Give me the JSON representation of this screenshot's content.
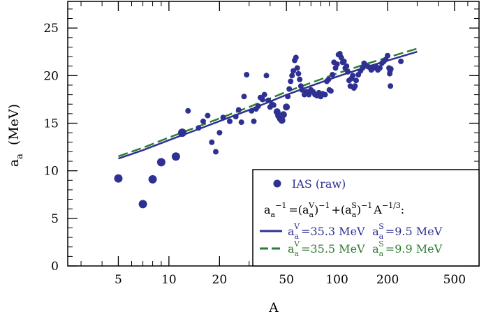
{
  "chart_data": {
    "type": "scatter",
    "xscale": "log",
    "xlim": [
      2.5,
      700
    ],
    "ylim": [
      0,
      27.8
    ],
    "xlabel": "A",
    "ylabel": {
      "main": "a",
      "sub": "a",
      "unit": "(MeV)"
    },
    "x_ticks": [
      5,
      10,
      20,
      50,
      100,
      200,
      500
    ],
    "y_ticks": [
      0,
      5,
      10,
      15,
      20,
      25
    ],
    "grid": false,
    "legend_position": "bottom-right",
    "legend": {
      "scatter_label": "IAS (raw)",
      "formula": {
        "a": "a",
        "sub_a": "a",
        "exp_m1": "−1",
        "exp_m13": "−1/3",
        "eq": "=",
        "paren_open": "(",
        "paren_close": ")",
        "plus": "+",
        "A": "A",
        "colon": ":",
        "sup_V": "V",
        "sup_S": "S"
      },
      "fits": [
        {
          "av_value": "35.3 MeV",
          "as_value": "9.5 MeV"
        },
        {
          "av_value": "35.5 MeV",
          "as_value": "9.9 MeV"
        }
      ]
    },
    "series": [
      {
        "name": "IAS (raw)",
        "kind": "points",
        "color": "#2e3192",
        "points": [
          [
            5,
            9.2
          ],
          [
            7,
            6.5
          ],
          [
            8,
            9.1
          ],
          [
            9,
            10.9
          ],
          [
            11,
            11.5
          ],
          [
            12,
            14.0
          ],
          [
            13,
            16.3
          ],
          [
            15,
            14.5
          ],
          [
            16,
            15.2
          ],
          [
            17,
            15.8
          ],
          [
            18,
            13.0
          ],
          [
            19,
            12.0
          ],
          [
            20,
            14.0
          ],
          [
            21,
            15.6
          ],
          [
            23,
            15.2
          ],
          [
            25,
            15.7
          ],
          [
            26,
            16.4
          ],
          [
            27,
            15.1
          ],
          [
            28,
            17.8
          ],
          [
            29,
            20.1
          ],
          [
            31,
            16.3
          ],
          [
            32,
            15.2
          ],
          [
            33,
            16.5
          ],
          [
            34,
            16.8
          ],
          [
            35,
            17.7
          ],
          [
            36,
            17.5
          ],
          [
            37,
            18.0
          ],
          [
            38,
            20.0
          ],
          [
            39,
            17.4
          ],
          [
            40,
            16.7
          ],
          [
            41,
            17.0
          ],
          [
            42,
            16.9
          ],
          [
            44,
            16.2
          ],
          [
            45,
            15.8
          ],
          [
            46,
            15.5
          ],
          [
            47,
            15.3
          ],
          [
            48,
            15.9
          ],
          [
            50,
            16.7
          ],
          [
            51,
            17.8
          ],
          [
            52,
            18.6
          ],
          [
            53,
            19.4
          ],
          [
            54,
            20.0
          ],
          [
            55,
            20.5
          ],
          [
            56,
            21.6
          ],
          [
            57,
            21.9
          ],
          [
            58,
            20.8
          ],
          [
            59,
            20.2
          ],
          [
            60,
            19.6
          ],
          [
            61,
            18.9
          ],
          [
            62,
            18.5
          ],
          [
            64,
            18.0
          ],
          [
            66,
            18.3
          ],
          [
            68,
            18.0
          ],
          [
            70,
            18.5
          ],
          [
            72,
            18.3
          ],
          [
            74,
            18.0
          ],
          [
            76,
            17.9
          ],
          [
            78,
            18.2
          ],
          [
            80,
            17.8
          ],
          [
            82,
            18.1
          ],
          [
            85,
            18.0
          ],
          [
            87,
            19.4
          ],
          [
            89,
            19.6
          ],
          [
            90,
            18.5
          ],
          [
            92,
            18.4
          ],
          [
            94,
            20.1
          ],
          [
            96,
            21.4
          ],
          [
            98,
            20.8
          ],
          [
            100,
            21.2
          ],
          [
            102,
            22.2
          ],
          [
            104,
            22.3
          ],
          [
            106,
            21.9
          ],
          [
            108,
            21.4
          ],
          [
            110,
            21.5
          ],
          [
            112,
            20.8
          ],
          [
            114,
            21.0
          ],
          [
            116,
            20.4
          ],
          [
            118,
            19.5
          ],
          [
            120,
            18.9
          ],
          [
            122,
            19.7
          ],
          [
            124,
            20.0
          ],
          [
            126,
            18.7
          ],
          [
            128,
            18.9
          ],
          [
            130,
            19.5
          ],
          [
            134,
            20.1
          ],
          [
            138,
            20.5
          ],
          [
            142,
            20.8
          ],
          [
            145,
            21.3
          ],
          [
            150,
            21.0
          ],
          [
            155,
            20.9
          ],
          [
            160,
            20.6
          ],
          [
            165,
            20.8
          ],
          [
            170,
            21.0
          ],
          [
            175,
            20.6
          ],
          [
            180,
            20.8
          ],
          [
            185,
            21.3
          ],
          [
            190,
            21.5
          ],
          [
            195,
            21.7
          ],
          [
            200,
            22.1
          ],
          [
            204,
            20.8
          ],
          [
            206,
            20.2
          ],
          [
            207,
            20.5
          ],
          [
            208,
            18.9
          ],
          [
            209,
            20.7
          ],
          [
            240,
            21.5
          ]
        ]
      },
      {
        "name": "fit 35.3 / 9.5",
        "kind": "line",
        "color": "#2e3192",
        "dash": "solid",
        "x": [
          5,
          7,
          10,
          15,
          20,
          30,
          50,
          70,
          100,
          150,
          200,
          300
        ],
        "y": [
          11.28,
          12.16,
          13.22,
          14.38,
          15.21,
          16.39,
          17.98,
          18.92,
          19.89,
          20.91,
          21.58,
          22.51
        ]
      },
      {
        "name": "fit 35.5 / 9.9",
        "kind": "line",
        "color": "#2e7d32",
        "dash": "dashed",
        "x": [
          5,
          7,
          10,
          15,
          20,
          30,
          50,
          70,
          100,
          150,
          200,
          300
        ],
        "y": [
          11.52,
          12.42,
          13.5,
          14.67,
          15.51,
          16.7,
          18.3,
          19.25,
          20.22,
          21.24,
          21.91,
          22.84
        ]
      }
    ]
  },
  "colors": {
    "scatter": "#2e3192",
    "fit_solid": "#2e3192",
    "fit_dashed": "#2e7d32"
  }
}
